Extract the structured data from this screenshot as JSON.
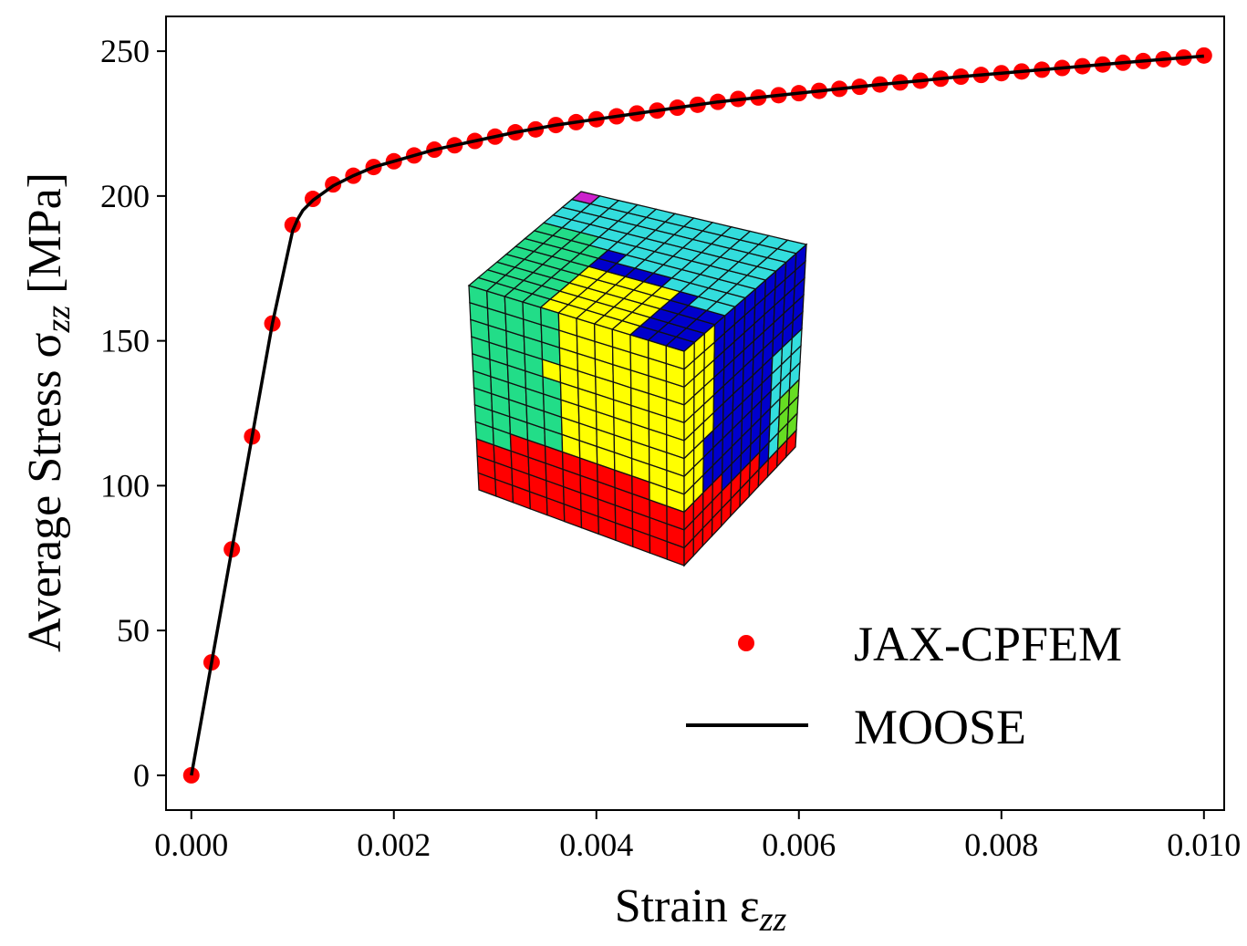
{
  "chart_data": {
    "type": "scatter",
    "xlabel_main": "Strain ε",
    "xlabel_sub": "zz",
    "ylabel_main": "Average Stress σ",
    "ylabel_sub": "zz",
    "ylabel_unit": " [MPa]",
    "xlim": [
      -0.00025,
      0.0102
    ],
    "ylim": [
      -12,
      262
    ],
    "xticks": [
      0.0,
      0.002,
      0.004,
      0.006,
      0.008,
      0.01
    ],
    "xtick_labels": [
      "0.000",
      "0.002",
      "0.004",
      "0.006",
      "0.008",
      "0.010"
    ],
    "yticks": [
      0,
      50,
      100,
      150,
      200,
      250
    ],
    "ytick_labels": [
      "0",
      "50",
      "100",
      "150",
      "200",
      "250"
    ],
    "legend_position": "lower-right",
    "series": [
      {
        "name": "JAX-CPFEM",
        "style": "markers",
        "color": "#ff0000",
        "x": [
          0.0,
          0.0002,
          0.0004,
          0.0006,
          0.0008,
          0.001,
          0.0012,
          0.0014,
          0.0016,
          0.0018,
          0.002,
          0.0022,
          0.0024,
          0.0026,
          0.0028,
          0.003,
          0.0032,
          0.0034,
          0.0036,
          0.0038,
          0.004,
          0.0042,
          0.0044,
          0.0046,
          0.0048,
          0.005,
          0.0052,
          0.0054,
          0.0056,
          0.0058,
          0.006,
          0.0062,
          0.0064,
          0.0066,
          0.0068,
          0.007,
          0.0072,
          0.0074,
          0.0076,
          0.0078,
          0.008,
          0.0082,
          0.0084,
          0.0086,
          0.0088,
          0.009,
          0.0092,
          0.0094,
          0.0096,
          0.0098,
          0.01
        ],
        "y": [
          0,
          39,
          78,
          117,
          156,
          190,
          199,
          204,
          207,
          210,
          212,
          214,
          216,
          217.5,
          219,
          220.5,
          222,
          223,
          224.5,
          225.5,
          226.5,
          227.5,
          228.5,
          229.5,
          230.5,
          231.5,
          232.5,
          233.5,
          234,
          234.8,
          235.5,
          236.3,
          237,
          237.7,
          238.5,
          239.2,
          239.8,
          240.5,
          241.2,
          241.8,
          242.4,
          243,
          243.6,
          244.2,
          244.8,
          245.4,
          246,
          246.6,
          247.2,
          247.8,
          248.5
        ]
      },
      {
        "name": "MOOSE",
        "style": "line",
        "color": "#000000",
        "x": [
          0.0,
          0.0002,
          0.0004,
          0.0006,
          0.0008,
          0.00095,
          0.001,
          0.00105,
          0.0011,
          0.0012,
          0.0014,
          0.0016,
          0.0018,
          0.002,
          0.0024,
          0.0028,
          0.0032,
          0.0036,
          0.004,
          0.0044,
          0.0048,
          0.0052,
          0.0056,
          0.006,
          0.0064,
          0.0068,
          0.0072,
          0.0076,
          0.008,
          0.0084,
          0.0088,
          0.0092,
          0.0096,
          0.01
        ],
        "y": [
          0,
          39,
          78,
          117,
          156,
          180,
          188,
          192,
          195,
          198.5,
          203.5,
          207,
          210,
          212,
          216,
          219,
          222,
          224.5,
          226.5,
          228.5,
          230.5,
          232.5,
          234,
          235.5,
          237,
          238.5,
          239.8,
          241.2,
          242.4,
          243.6,
          244.8,
          246,
          247.2,
          248.3
        ]
      }
    ]
  },
  "inset": {
    "description_colors": {
      "red": "#ff0000",
      "yellow": "#ffff00",
      "blue": "#0000cc",
      "cyan": "#33dddd",
      "green": "#22dd88",
      "lime": "#66dd22",
      "magenta": "#cc22cc"
    }
  }
}
